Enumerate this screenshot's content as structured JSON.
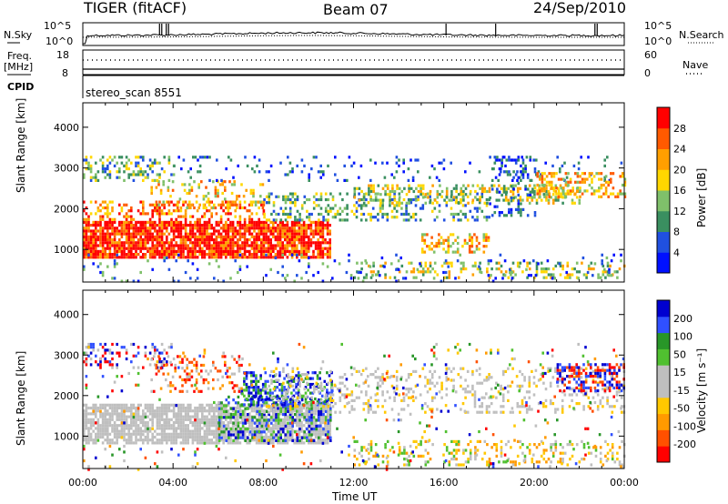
{
  "header": {
    "radar": "TIGER (fitACF)",
    "beam": "Beam 07",
    "date": "24/Sep/2010"
  },
  "top_panels": {
    "nsky_label": "N.Sky",
    "nsearch_label": "N.Search",
    "freq_label_1": "Freq.",
    "freq_label_2": "[MHz]",
    "nave_label": "Nave",
    "cpid_label": "CPID",
    "cpid_value": "stereo_scan 8551",
    "noise_ticks": [
      "10^5",
      "10^0"
    ],
    "freq_ticks": [
      "18",
      "8"
    ],
    "nave_ticks": [
      "60",
      "0"
    ]
  },
  "colors": {
    "power_scale": [
      "#0010ff",
      "#2050e0",
      "#3a8f60",
      "#7fc06a",
      "#ffd700",
      "#ff9f00",
      "#ff5a00",
      "#ff0000"
    ],
    "velocity_scale": [
      "#ff0000",
      "#ff5000",
      "#ff9a00",
      "#ffc800",
      "#bfbfbf",
      "#bfbfbf",
      "#50c030",
      "#289628",
      "#3050ff",
      "#0000d0"
    ]
  },
  "chart_data": [
    {
      "type": "heatmap",
      "name": "power",
      "ylabel": "Slant Range [km]",
      "yticks": [
        1000,
        2000,
        3000,
        4000
      ],
      "ylim": [
        200,
        4600
      ],
      "xlim_hours": [
        0,
        24
      ],
      "colorbar_label": "Power [dB]",
      "colorbar_ticks": [
        4,
        8,
        12,
        16,
        20,
        24,
        28
      ],
      "colorbar_range": [
        0,
        32
      ]
    },
    {
      "type": "heatmap",
      "name": "velocity",
      "ylabel": "Slant Range [km]",
      "yticks": [
        1000,
        2000,
        3000,
        4000
      ],
      "ylim": [
        200,
        4600
      ],
      "xlim_hours": [
        0,
        24
      ],
      "colorbar_label": "Velocity [m s⁻¹]",
      "colorbar_ticks": [
        -200,
        -100,
        -50,
        -15,
        15,
        50,
        100,
        200
      ]
    }
  ],
  "x_axis": {
    "label": "Time UT",
    "ticks": [
      "00:00",
      "04:00",
      "08:00",
      "12:00",
      "16:00",
      "20:00",
      "00:00"
    ]
  }
}
